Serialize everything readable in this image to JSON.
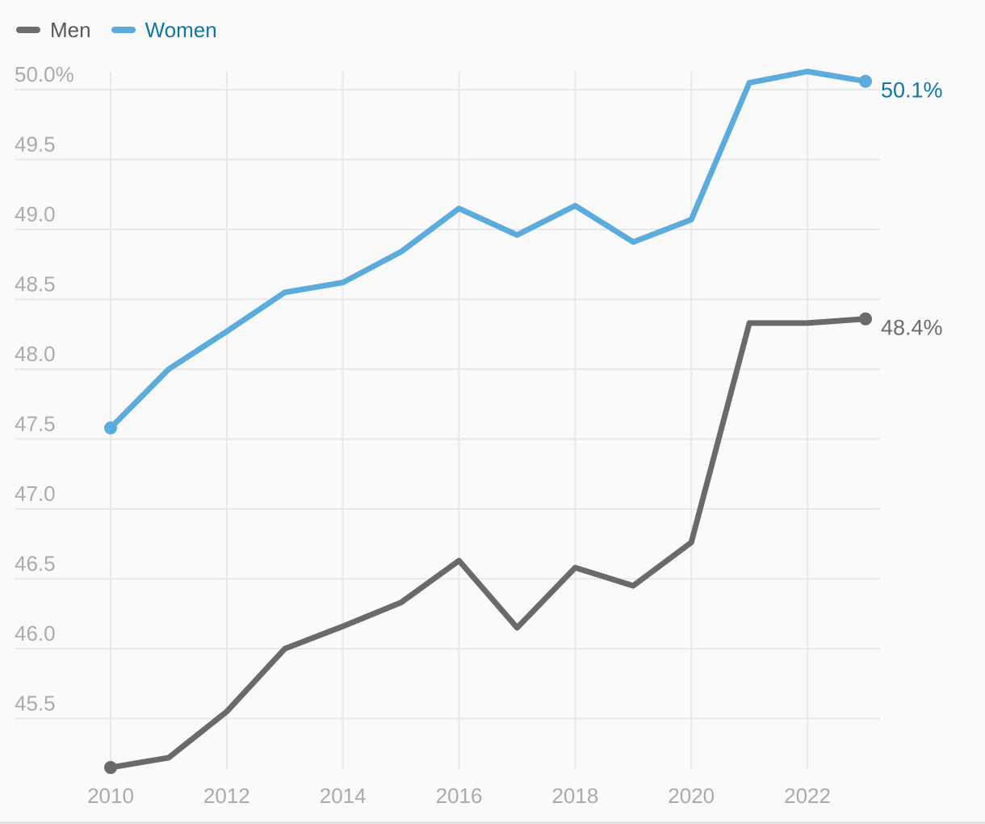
{
  "legend": {
    "items": [
      {
        "label": "Men",
        "swatch_color": "#6d6d6d",
        "label_color": "#58585a"
      },
      {
        "label": "Women",
        "swatch_color": "#5babdd",
        "label_color": "#0f76a8"
      }
    ]
  },
  "chart_data": {
    "type": "line",
    "title": "",
    "x": [
      2010,
      2011,
      2012,
      2013,
      2014,
      2015,
      2016,
      2017,
      2018,
      2019,
      2020,
      2021,
      2022,
      2023
    ],
    "series": [
      {
        "name": "Men",
        "color": "#6a6a6a",
        "values": [
          45.15,
          45.22,
          45.55,
          46.0,
          46.16,
          46.33,
          46.63,
          46.15,
          46.58,
          46.45,
          46.76,
          48.33,
          48.33,
          48.36
        ],
        "end_label": "48.4%",
        "end_label_color": "#6d6d6d"
      },
      {
        "name": "Women",
        "color": "#5babdd",
        "values": [
          47.58,
          48.0,
          48.27,
          48.55,
          48.62,
          48.84,
          49.15,
          48.96,
          49.17,
          48.91,
          49.07,
          50.05,
          50.13,
          50.06
        ],
        "end_label": "50.1%",
        "end_label_color": "#1177a9"
      }
    ],
    "y_axis": {
      "ticks": [
        {
          "v": 50.0,
          "label": "50.0%"
        },
        {
          "v": 49.5,
          "label": "49.5"
        },
        {
          "v": 49.0,
          "label": "49.0"
        },
        {
          "v": 48.5,
          "label": "48.5"
        },
        {
          "v": 48.0,
          "label": "48.0"
        },
        {
          "v": 47.5,
          "label": "47.5"
        },
        {
          "v": 47.0,
          "label": "47.0"
        },
        {
          "v": 46.5,
          "label": "46.5"
        },
        {
          "v": 46.0,
          "label": "46.0"
        },
        {
          "v": 45.5,
          "label": "45.5"
        }
      ],
      "label_color": "#ababab"
    },
    "x_axis": {
      "ticks": [
        2010,
        2012,
        2014,
        2016,
        2018,
        2020,
        2022
      ],
      "label_color": "#ababab"
    },
    "ylim": [
      45.1,
      50.15
    ],
    "grid": true,
    "gridline_color": "#e8e8e8",
    "background": "#fafafa",
    "legend_position": "top-left"
  }
}
